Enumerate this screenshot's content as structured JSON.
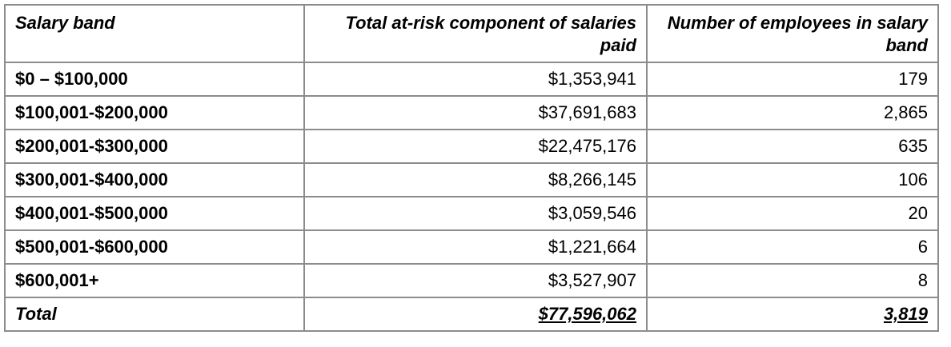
{
  "table": {
    "headers": {
      "band": "Salary band",
      "at_risk": "Total at-risk component of salaries paid",
      "employees": "Number of employees in salary band"
    },
    "rows": [
      {
        "band": "$0 – $100,000",
        "at_risk": "$1,353,941",
        "employees": "179"
      },
      {
        "band": "$100,001-$200,000",
        "at_risk": "$37,691,683",
        "employees": "2,865"
      },
      {
        "band": "$200,001-$300,000",
        "at_risk": "$22,475,176",
        "employees": "635"
      },
      {
        "band": "$300,001-$400,000",
        "at_risk": "$8,266,145",
        "employees": "106"
      },
      {
        "band": "$400,001-$500,000",
        "at_risk": "$3,059,546",
        "employees": "20"
      },
      {
        "band": "$500,001-$600,000",
        "at_risk": "$1,221,664",
        "employees": "6"
      },
      {
        "band": "$600,001+",
        "at_risk": "$3,527,907",
        "employees": "8"
      }
    ],
    "total": {
      "label": "Total",
      "at_risk": "$77,596,062",
      "employees": "3,819"
    }
  }
}
